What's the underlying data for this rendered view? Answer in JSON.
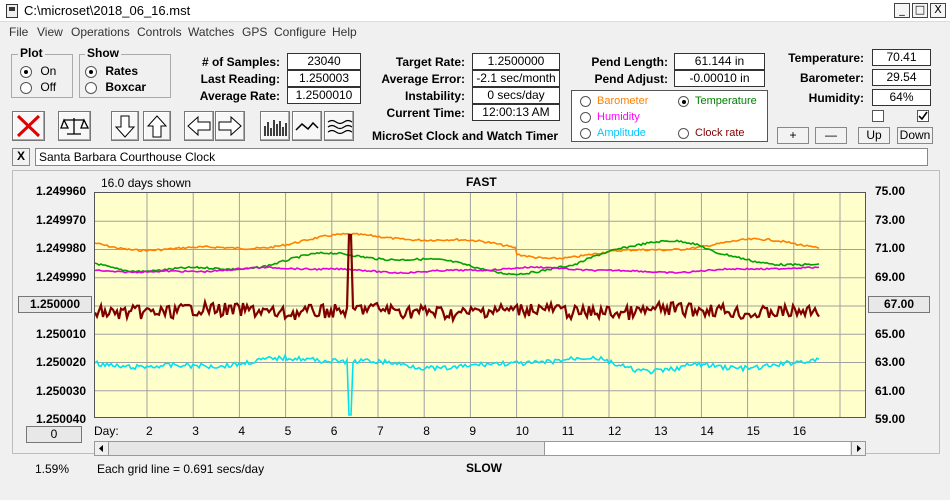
{
  "window": {
    "title": "C:\\microset\\2018_06_16.mst",
    "minimize": "_",
    "maximize": "□",
    "close": "X"
  },
  "menu": [
    "File",
    "View",
    "Operations",
    "Controls",
    "Watches",
    "GPS",
    "Configure",
    "Help"
  ],
  "plot_group": {
    "title": "Plot",
    "options": [
      "On",
      "Off"
    ],
    "selected": "On"
  },
  "show_group": {
    "title": "Show",
    "options": [
      "Rates",
      "Boxcar"
    ],
    "selected": "Rates"
  },
  "stats": {
    "samples_label": "# of Samples:",
    "samples": "23040",
    "last_label": "Last Reading:",
    "last": "1.250003",
    "avg_rate_label": "Average Rate:",
    "avg_rate": "1.2500010",
    "target_label": "Target Rate:",
    "target": "1.2500000",
    "avg_err_label": "Average Error:",
    "avg_err": "-2.1 sec/month",
    "instab_label": "Instability:",
    "instab": "0 secs/day",
    "time_label": "Current Time:",
    "time": "12:00:13 AM",
    "pend_len_label": "Pend Length:",
    "pend_len": "61.144 in",
    "pend_adj_label": "Pend Adjust:",
    "pend_adj": "-0.00010 in",
    "temp_label": "Temperature:",
    "temp": "70.41",
    "baro_label": "Barometer:",
    "baro": "29.54",
    "hum_label": "Humidity:",
    "hum": "64%"
  },
  "app_caption": "MicroSet Clock and Watch Timer",
  "legend": {
    "items": [
      {
        "label": "Barometer",
        "color": "#ff8000",
        "selected": false
      },
      {
        "label": "Temperature",
        "color": "#008000",
        "selected": true
      },
      {
        "label": "Humidity",
        "color": "#ff00ff",
        "selected": false
      },
      {
        "label": "Amplitude",
        "color": "#00c8ff",
        "selected": false
      },
      {
        "label": "Clock rate",
        "color": "#800000",
        "selected": false
      }
    ]
  },
  "scale_buttons": {
    "plus": "+",
    "minus": "—",
    "up": "Up",
    "down": "Down"
  },
  "watch_name": "Santa Barbara Courthouse Clock",
  "close_x": "X",
  "chart_header": {
    "days_shown": "16.0 days shown",
    "fast": "FAST",
    "slow": "SLOW"
  },
  "footer": {
    "percent": "1.59%",
    "grid_note": "Each grid line = 0.691 secs/day",
    "zero": "0"
  },
  "left_axis": [
    "1.249960",
    "1.249970",
    "1.249980",
    "1.249990",
    "1.250000",
    "1.250010",
    "1.250020",
    "1.250030",
    "1.250040"
  ],
  "right_axis": [
    "75.00",
    "73.00",
    "71.00",
    "69.00",
    "67.00",
    "65.00",
    "63.00",
    "61.00",
    "59.00"
  ],
  "x_axis": {
    "label": "Day:",
    "ticks": [
      "2",
      "3",
      "4",
      "5",
      "6",
      "7",
      "8",
      "9",
      "10",
      "11",
      "12",
      "13",
      "14",
      "15",
      "16"
    ]
  },
  "colors": {
    "plot_bg": "#ffffcc",
    "barometer": "#ff8000",
    "temperature": "#00a000",
    "humidity": "#e000e0",
    "amplitude": "#00e0f0",
    "clock_rate": "#800000",
    "grid": "#a0a0a0"
  }
}
